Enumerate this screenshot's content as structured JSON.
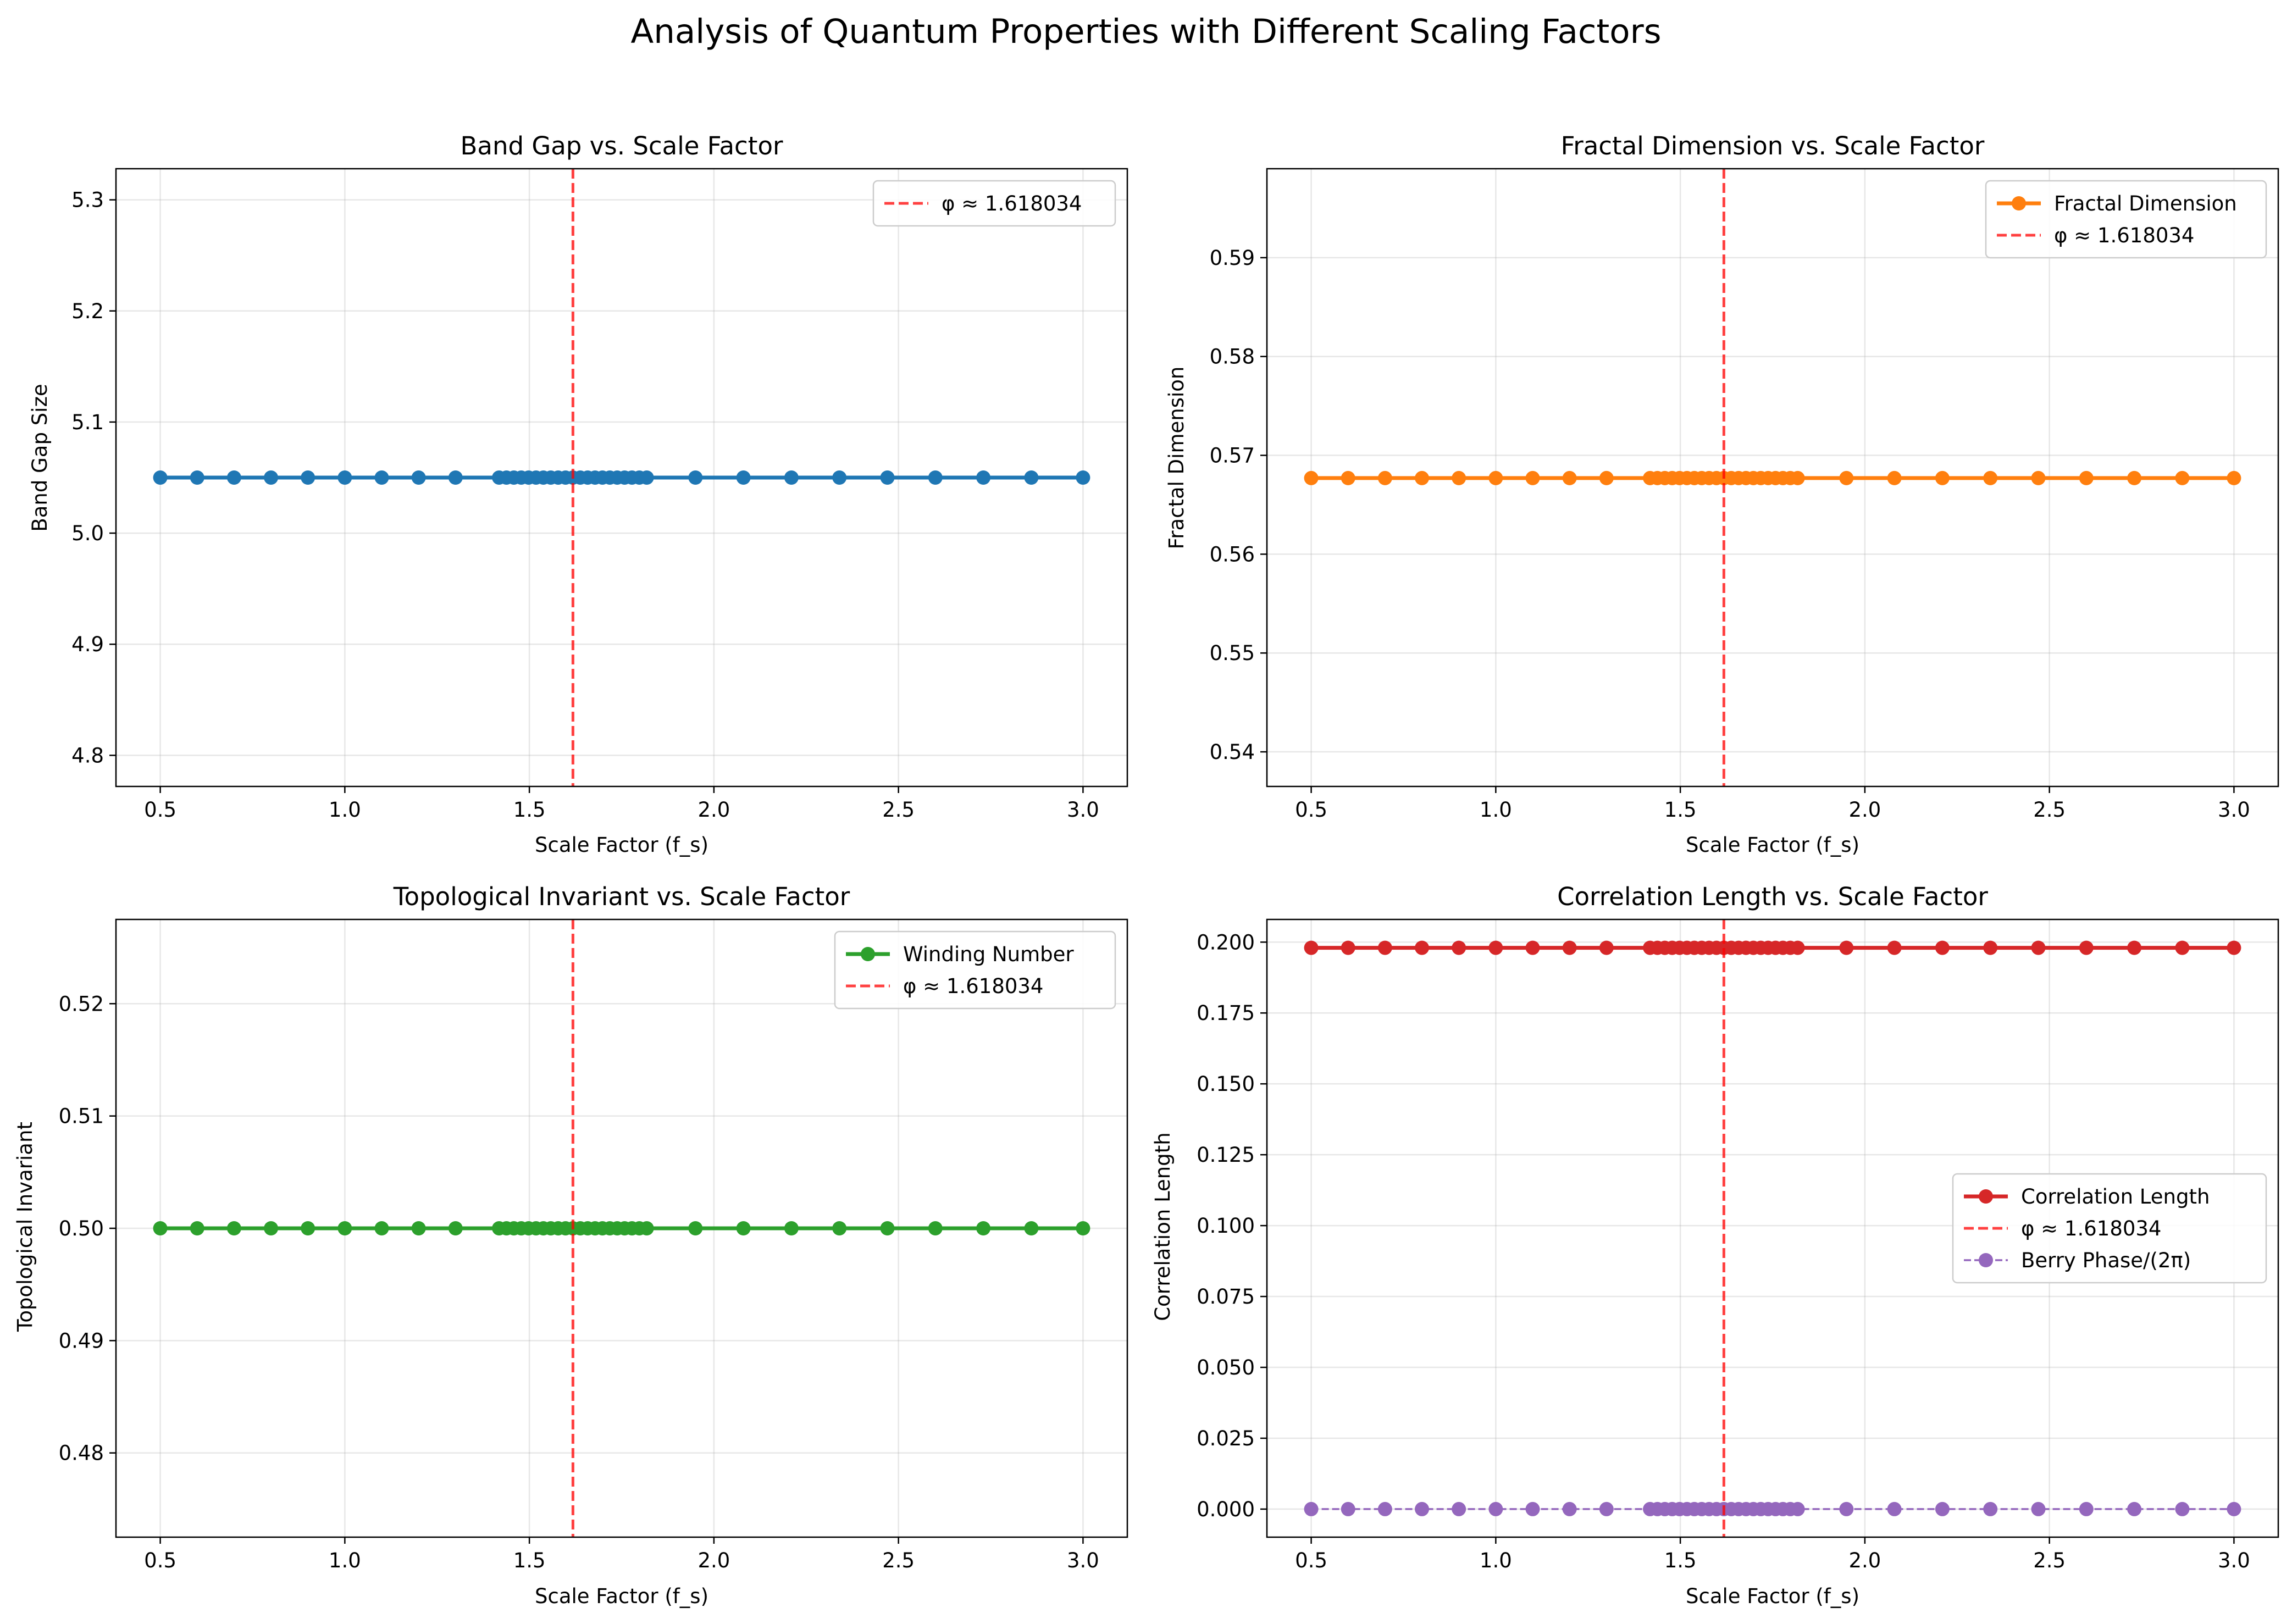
{
  "suptitle": "Analysis of Quantum Properties with Different Scaling Factors",
  "colors": {
    "blue": "#1f77b4",
    "orange": "#ff7f0e",
    "green": "#2ca02c",
    "red": "#d62728",
    "purple": "#9467bd",
    "phi_line": "#ff0000"
  },
  "chart_data": [
    {
      "type": "line",
      "title": "Band Gap vs. Scale Factor",
      "xlabel": "Scale Factor (f_s)",
      "ylabel": "Band Gap Size",
      "xlim": [
        0.38,
        3.12
      ],
      "ylim": [
        4.772,
        5.328
      ],
      "xticks": [
        "0.5",
        "1.0",
        "1.5",
        "2.0",
        "2.5",
        "3.0"
      ],
      "yticks": [
        "4.8",
        "4.9",
        "5.0",
        "5.1",
        "5.2",
        "5.3"
      ],
      "grid": true,
      "legend_position": "upper right",
      "x": [
        0.5,
        0.6,
        0.7,
        0.8,
        0.9,
        1.0,
        1.1,
        1.2,
        1.3,
        1.418,
        1.438,
        1.458,
        1.478,
        1.498,
        1.518,
        1.538,
        1.558,
        1.578,
        1.598,
        1.618,
        1.638,
        1.658,
        1.678,
        1.698,
        1.718,
        1.738,
        1.758,
        1.778,
        1.798,
        1.818,
        1.95,
        2.08,
        2.21,
        2.34,
        2.47,
        2.6,
        2.73,
        2.86,
        3.0
      ],
      "series": [
        {
          "values": [
            5.05,
            5.05,
            5.05,
            5.05,
            5.05,
            5.05,
            5.05,
            5.05,
            5.05,
            5.05,
            5.05,
            5.05,
            5.05,
            5.05,
            5.05,
            5.05,
            5.05,
            5.05,
            5.05,
            5.05,
            5.05,
            5.05,
            5.05,
            5.05,
            5.05,
            5.05,
            5.05,
            5.05,
            5.05,
            5.05,
            5.05,
            5.05,
            5.05,
            5.05,
            5.05,
            5.05,
            5.05,
            5.05,
            5.05
          ],
          "color": "#1f77b4",
          "style": "solid",
          "marker": true,
          "width": 1
        }
      ],
      "vline": {
        "x": 1.618034,
        "label": "φ ≈ 1.618034"
      },
      "legend": [
        {
          "label": "φ ≈ 1.618034",
          "kind": "vline"
        }
      ]
    },
    {
      "type": "line",
      "title": "Fractal Dimension vs. Scale Factor",
      "xlabel": "Scale Factor (f_s)",
      "ylabel": "Fractal Dimension",
      "xlim": [
        0.38,
        3.12
      ],
      "ylim": [
        0.5365,
        0.599
      ],
      "xticks": [
        "0.5",
        "1.0",
        "1.5",
        "2.0",
        "2.5",
        "3.0"
      ],
      "yticks": [
        "0.54",
        "0.55",
        "0.56",
        "0.57",
        "0.58",
        "0.59"
      ],
      "grid": true,
      "legend_position": "upper right",
      "x": [
        0.5,
        0.6,
        0.7,
        0.8,
        0.9,
        1.0,
        1.1,
        1.2,
        1.3,
        1.418,
        1.438,
        1.458,
        1.478,
        1.498,
        1.518,
        1.538,
        1.558,
        1.578,
        1.598,
        1.618,
        1.638,
        1.658,
        1.678,
        1.698,
        1.718,
        1.738,
        1.758,
        1.778,
        1.798,
        1.818,
        1.95,
        2.08,
        2.21,
        2.34,
        2.47,
        2.6,
        2.73,
        2.86,
        3.0
      ],
      "series": [
        {
          "name": "Fractal Dimension",
          "values": [
            0.5677,
            0.5677,
            0.5677,
            0.5677,
            0.5677,
            0.5677,
            0.5677,
            0.5677,
            0.5677,
            0.5677,
            0.5677,
            0.5677,
            0.5677,
            0.5677,
            0.5677,
            0.5677,
            0.5677,
            0.5677,
            0.5677,
            0.5677,
            0.5677,
            0.5677,
            0.5677,
            0.5677,
            0.5677,
            0.5677,
            0.5677,
            0.5677,
            0.5677,
            0.5677,
            0.5677,
            0.5677,
            0.5677,
            0.5677,
            0.5677,
            0.5677,
            0.5677,
            0.5677,
            0.5677
          ],
          "color": "#ff7f0e",
          "style": "solid",
          "marker": true,
          "width": 1
        }
      ],
      "vline": {
        "x": 1.618034,
        "label": "φ ≈ 1.618034"
      },
      "legend": [
        {
          "label": "Fractal Dimension",
          "kind": "series",
          "series": 0
        },
        {
          "label": "φ ≈ 1.618034",
          "kind": "vline"
        }
      ]
    },
    {
      "type": "line",
      "title": "Topological Invariant vs. Scale Factor",
      "xlabel": "Scale Factor (f_s)",
      "ylabel": "Topological Invariant",
      "xlim": [
        0.38,
        3.12
      ],
      "ylim": [
        0.4725,
        0.5275
      ],
      "xticks": [
        "0.5",
        "1.0",
        "1.5",
        "2.0",
        "2.5",
        "3.0"
      ],
      "yticks": [
        "0.48",
        "0.49",
        "0.50",
        "0.51",
        "0.52"
      ],
      "grid": true,
      "legend_position": "upper right",
      "x": [
        0.5,
        0.6,
        0.7,
        0.8,
        0.9,
        1.0,
        1.1,
        1.2,
        1.3,
        1.418,
        1.438,
        1.458,
        1.478,
        1.498,
        1.518,
        1.538,
        1.558,
        1.578,
        1.598,
        1.618,
        1.638,
        1.658,
        1.678,
        1.698,
        1.718,
        1.738,
        1.758,
        1.778,
        1.798,
        1.818,
        1.95,
        2.08,
        2.21,
        2.34,
        2.47,
        2.6,
        2.73,
        2.86,
        3.0
      ],
      "series": [
        {
          "name": "Winding Number",
          "values": [
            0.5,
            0.5,
            0.5,
            0.5,
            0.5,
            0.5,
            0.5,
            0.5,
            0.5,
            0.5,
            0.5,
            0.5,
            0.5,
            0.5,
            0.5,
            0.5,
            0.5,
            0.5,
            0.5,
            0.5,
            0.5,
            0.5,
            0.5,
            0.5,
            0.5,
            0.5,
            0.5,
            0.5,
            0.5,
            0.5,
            0.5,
            0.5,
            0.5,
            0.5,
            0.5,
            0.5,
            0.5,
            0.5,
            0.5
          ],
          "color": "#2ca02c",
          "style": "solid",
          "marker": true,
          "width": 1
        }
      ],
      "vline": {
        "x": 1.618034,
        "label": "φ ≈ 1.618034"
      },
      "legend": [
        {
          "label": "Winding Number",
          "kind": "series",
          "series": 0
        },
        {
          "label": "φ ≈ 1.618034",
          "kind": "vline"
        }
      ]
    },
    {
      "type": "line",
      "title": "Correlation Length vs. Scale Factor",
      "xlabel": "Scale Factor (f_s)",
      "ylabel": "Correlation Length",
      "xlim": [
        0.38,
        3.12
      ],
      "ylim": [
        -0.0099,
        0.208
      ],
      "xticks": [
        "0.5",
        "1.0",
        "1.5",
        "2.0",
        "2.5",
        "3.0"
      ],
      "yticks": [
        "0.000",
        "0.025",
        "0.050",
        "0.075",
        "0.100",
        "0.125",
        "0.150",
        "0.175",
        "0.200"
      ],
      "grid": true,
      "legend_position": "center right",
      "x": [
        0.5,
        0.6,
        0.7,
        0.8,
        0.9,
        1.0,
        1.1,
        1.2,
        1.3,
        1.418,
        1.438,
        1.458,
        1.478,
        1.498,
        1.518,
        1.538,
        1.558,
        1.578,
        1.598,
        1.618,
        1.638,
        1.658,
        1.678,
        1.698,
        1.718,
        1.738,
        1.758,
        1.778,
        1.798,
        1.818,
        1.95,
        2.08,
        2.21,
        2.34,
        2.47,
        2.6,
        2.73,
        2.86,
        3.0
      ],
      "series": [
        {
          "name": "Correlation Length",
          "values": [
            0.198,
            0.198,
            0.198,
            0.198,
            0.198,
            0.198,
            0.198,
            0.198,
            0.198,
            0.198,
            0.198,
            0.198,
            0.198,
            0.198,
            0.198,
            0.198,
            0.198,
            0.198,
            0.198,
            0.198,
            0.198,
            0.198,
            0.198,
            0.198,
            0.198,
            0.198,
            0.198,
            0.198,
            0.198,
            0.198,
            0.198,
            0.198,
            0.198,
            0.198,
            0.198,
            0.198,
            0.198,
            0.198,
            0.198
          ],
          "color": "#d62728",
          "style": "solid",
          "marker": true,
          "width": 1
        },
        {
          "name": "Berry Phase/(2π)",
          "values": [
            0,
            0,
            0,
            0,
            0,
            0,
            0,
            0,
            0,
            0,
            0,
            0,
            0,
            0,
            0,
            0,
            0,
            0,
            0,
            0,
            0,
            0,
            0,
            0,
            0,
            0,
            0,
            0,
            0,
            0,
            0,
            0,
            0,
            0,
            0,
            0,
            0,
            0,
            0
          ],
          "color": "#9467bd",
          "style": "dashed",
          "marker": true,
          "width": 0.5
        }
      ],
      "vline": {
        "x": 1.618034,
        "label": "φ ≈ 1.618034"
      },
      "legend": [
        {
          "label": "Correlation Length",
          "kind": "series",
          "series": 0
        },
        {
          "label": "φ ≈ 1.618034",
          "kind": "vline"
        },
        {
          "label": "Berry Phase/(2π)",
          "kind": "series",
          "series": 1
        }
      ]
    }
  ]
}
